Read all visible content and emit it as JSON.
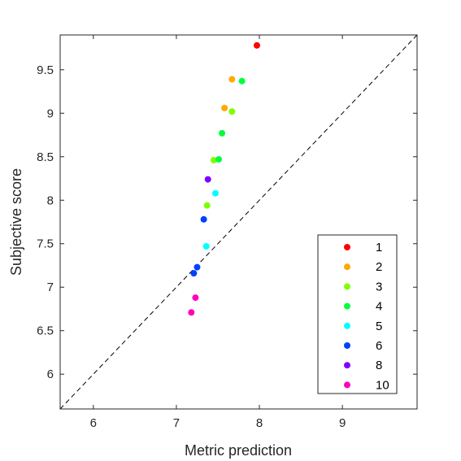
{
  "chart_data": {
    "type": "scatter",
    "title": "",
    "xlabel": "Metric prediction",
    "ylabel": "Subjective score",
    "xlim": [
      5.6,
      9.9
    ],
    "ylim": [
      5.6,
      9.9
    ],
    "xticks": [
      "6",
      "7",
      "8",
      "9"
    ],
    "yticks": [
      "6",
      "6.5",
      "7",
      "7.5",
      "8",
      "8.5",
      "9",
      "9.5"
    ],
    "reference_line": "y = x (dashed)",
    "grid": false,
    "legend_position": "bottom-right",
    "series": [
      {
        "name": "1",
        "color": "#ff0000",
        "points": [
          [
            7.97,
            9.78
          ]
        ]
      },
      {
        "name": "2",
        "color": "#ffaa00",
        "points": [
          [
            7.67,
            9.39
          ],
          [
            7.58,
            9.06
          ]
        ]
      },
      {
        "name": "3",
        "color": "#80ff00",
        "points": [
          [
            7.67,
            9.02
          ],
          [
            7.45,
            8.46
          ],
          [
            7.37,
            7.94
          ]
        ]
      },
      {
        "name": "4",
        "color": "#00ff40",
        "points": [
          [
            7.79,
            9.37
          ],
          [
            7.55,
            8.77
          ],
          [
            7.51,
            8.47
          ]
        ]
      },
      {
        "name": "5",
        "color": "#00ffff",
        "points": [
          [
            7.47,
            8.08
          ],
          [
            7.36,
            7.47
          ]
        ]
      },
      {
        "name": "6",
        "color": "#0040ff",
        "points": [
          [
            7.33,
            7.78
          ],
          [
            7.25,
            7.23
          ],
          [
            7.21,
            7.16
          ]
        ]
      },
      {
        "name": "8",
        "color": "#8000ff",
        "points": [
          [
            7.38,
            8.24
          ]
        ]
      },
      {
        "name": "10",
        "color": "#ff00bf",
        "points": [
          [
            7.23,
            6.88
          ],
          [
            7.18,
            6.71
          ]
        ]
      }
    ]
  }
}
